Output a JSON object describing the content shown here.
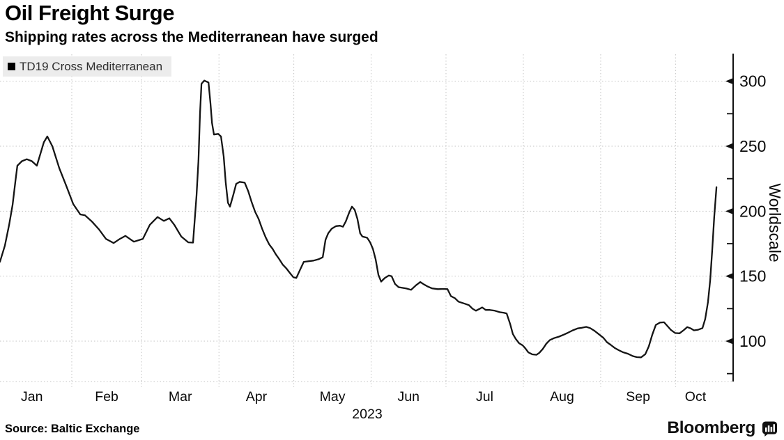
{
  "header": {
    "title": "Oil Freight Surge",
    "subtitle": "Shipping rates across the Mediterranean have surged"
  },
  "legend": {
    "series_label": "TD19 Cross Mediterranean",
    "swatch_color": "#000000",
    "background_color": "#ececec",
    "position": "top-left"
  },
  "footer": {
    "source": "Source: Baltic Exchange",
    "brand": "Bloomberg"
  },
  "chart_data": {
    "type": "line",
    "title": "Oil Freight Surge",
    "subtitle": "Shipping rates across the Mediterranean have surged",
    "series_name": "TD19 Cross Mediterranean",
    "xlabel": "",
    "ylabel": "Worldscale",
    "year_label": "2023",
    "x_tick_labels": [
      "Jan",
      "Feb",
      "Mar",
      "Apr",
      "May",
      "Jun",
      "Jul",
      "Aug",
      "Sep",
      "Oct"
    ],
    "x_tick_label_days": [
      15,
      45,
      74.5,
      105,
      135.5,
      166,
      196.5,
      227.5,
      258,
      281
    ],
    "month_start_days": [
      31,
      59,
      90,
      120,
      151,
      181,
      212,
      243,
      273
    ],
    "y_ticks": [
      100,
      150,
      200,
      250,
      300
    ],
    "y_minor_ticks": [
      75,
      125,
      175,
      225,
      275
    ],
    "ylim": [
      68,
      320
    ],
    "xlim_days": [
      0,
      296
    ],
    "grid": "dotted",
    "grid_color": "#c3c3c3",
    "axis_side": "right",
    "line_color": "#141414",
    "text_color": "#0a0a0a",
    "points": [
      [
        2.2,
        161
      ],
      [
        4.2,
        173.5
      ],
      [
        5.9,
        189.5
      ],
      [
        7.3,
        205
      ],
      [
        8.4,
        223
      ],
      [
        9.2,
        235
      ],
      [
        11,
        238.5
      ],
      [
        13,
        240
      ],
      [
        15,
        238.5
      ],
      [
        17,
        235
      ],
      [
        18.4,
        244
      ],
      [
        19.8,
        253
      ],
      [
        21.2,
        257.5
      ],
      [
        23.2,
        250
      ],
      [
        26,
        233
      ],
      [
        28.8,
        219.5
      ],
      [
        31.6,
        205.5
      ],
      [
        34.4,
        197.5
      ],
      [
        36.3,
        196.8
      ],
      [
        39.1,
        192
      ],
      [
        41.9,
        186
      ],
      [
        44.7,
        178.7
      ],
      [
        47.8,
        175.5
      ],
      [
        50.3,
        178.7
      ],
      [
        52.5,
        181
      ],
      [
        55.9,
        176.5
      ],
      [
        59.5,
        178.7
      ],
      [
        62.3,
        189.5
      ],
      [
        65.4,
        195.5
      ],
      [
        67.9,
        192.5
      ],
      [
        70.1,
        194.5
      ],
      [
        72.1,
        189.5
      ],
      [
        74.9,
        180.5
      ],
      [
        77.7,
        176
      ],
      [
        79.6,
        175.8
      ],
      [
        81,
        212
      ],
      [
        81.8,
        239
      ],
      [
        82.4,
        275
      ],
      [
        83,
        298
      ],
      [
        84.1,
        300.5
      ],
      [
        85.8,
        299
      ],
      [
        86.6,
        283
      ],
      [
        87.2,
        268
      ],
      [
        88,
        259
      ],
      [
        89.7,
        259.5
      ],
      [
        90.8,
        257.5
      ],
      [
        91.9,
        242
      ],
      [
        92.7,
        222
      ],
      [
        93.6,
        206.5
      ],
      [
        94.4,
        203.5
      ],
      [
        95.8,
        213
      ],
      [
        96.9,
        221
      ],
      [
        98.3,
        222.5
      ],
      [
        100.3,
        222
      ],
      [
        101.7,
        215.5
      ],
      [
        103.1,
        207
      ],
      [
        104.5,
        199.5
      ],
      [
        105.9,
        194
      ],
      [
        107.3,
        186.5
      ],
      [
        108.7,
        180
      ],
      [
        110.1,
        174.5
      ],
      [
        111.5,
        171
      ],
      [
        112.8,
        166.8
      ],
      [
        114.2,
        163
      ],
      [
        115.6,
        158.8
      ],
      [
        117,
        156
      ],
      [
        118.4,
        152.5
      ],
      [
        119.8,
        149.2
      ],
      [
        121,
        148.6
      ],
      [
        122.3,
        154
      ],
      [
        124,
        161
      ],
      [
        127.9,
        162
      ],
      [
        129.9,
        163
      ],
      [
        131.6,
        164.5
      ],
      [
        132.7,
        178
      ],
      [
        133.8,
        183
      ],
      [
        135.2,
        186.5
      ],
      [
        136.9,
        188.5
      ],
      [
        138.5,
        188.8
      ],
      [
        139.7,
        188
      ],
      [
        140.8,
        192
      ],
      [
        142.2,
        199
      ],
      [
        143.3,
        203.5
      ],
      [
        144.4,
        201
      ],
      [
        145.5,
        194
      ],
      [
        146.6,
        183
      ],
      [
        147.5,
        180.5
      ],
      [
        148.6,
        180
      ],
      [
        149.4,
        179.5
      ],
      [
        150.6,
        176
      ],
      [
        151.7,
        171
      ],
      [
        152.8,
        163
      ],
      [
        153.9,
        151
      ],
      [
        155,
        145.8
      ],
      [
        156.4,
        148.5
      ],
      [
        158.1,
        150.5
      ],
      [
        159.2,
        150
      ],
      [
        160.6,
        144
      ],
      [
        162,
        141.5
      ],
      [
        163.7,
        141
      ],
      [
        165.1,
        140.5
      ],
      [
        167,
        139.5
      ],
      [
        169,
        143
      ],
      [
        170.7,
        145.5
      ],
      [
        172.3,
        143.5
      ],
      [
        173.7,
        142
      ],
      [
        175.4,
        140.6
      ],
      [
        177.7,
        140
      ],
      [
        179.9,
        140.2
      ],
      [
        181.6,
        140
      ],
      [
        183,
        134.6
      ],
      [
        184.6,
        133
      ],
      [
        186,
        130.4
      ],
      [
        188.5,
        128.8
      ],
      [
        190.2,
        127.7
      ],
      [
        191.6,
        125
      ],
      [
        193,
        123.4
      ],
      [
        194.4,
        124.8
      ],
      [
        195.5,
        126
      ],
      [
        196.9,
        124
      ],
      [
        198.6,
        124
      ],
      [
        200.6,
        123.4
      ],
      [
        202.5,
        122.3
      ],
      [
        204.2,
        121.8
      ],
      [
        205.3,
        121.3
      ],
      [
        206.7,
        113.3
      ],
      [
        207.8,
        105.5
      ],
      [
        208.9,
        101.8
      ],
      [
        210.3,
        98.4
      ],
      [
        211.7,
        96.8
      ],
      [
        212.8,
        94.5
      ],
      [
        214,
        91.4
      ],
      [
        215.6,
        89.8
      ],
      [
        217.3,
        89.5
      ],
      [
        218.4,
        91
      ],
      [
        219.8,
        94
      ],
      [
        221.2,
        98
      ],
      [
        222.6,
        100.8
      ],
      [
        224.3,
        102.3
      ],
      [
        226.3,
        103.5
      ],
      [
        228.2,
        105
      ],
      [
        229.9,
        106.5
      ],
      [
        231.8,
        108.3
      ],
      [
        233.8,
        109.8
      ],
      [
        235.5,
        110.3
      ],
      [
        237.2,
        111
      ],
      [
        238.8,
        110
      ],
      [
        240.5,
        108
      ],
      [
        242.5,
        105
      ],
      [
        244.1,
        102.5
      ],
      [
        245.5,
        99.2
      ],
      [
        246.9,
        97.3
      ],
      [
        248.6,
        94.8
      ],
      [
        250.3,
        93
      ],
      [
        251.9,
        91.5
      ],
      [
        253.9,
        90.3
      ],
      [
        255.9,
        88.5
      ],
      [
        257.5,
        87.7
      ],
      [
        259.2,
        87.5
      ],
      [
        260.9,
        90
      ],
      [
        262.3,
        96
      ],
      [
        263.7,
        105
      ],
      [
        265.1,
        112.5
      ],
      [
        266.8,
        114.3
      ],
      [
        268.4,
        114.5
      ],
      [
        269.8,
        111.5
      ],
      [
        271.2,
        108.5
      ],
      [
        272.9,
        106.2
      ],
      [
        274.6,
        106
      ],
      [
        276.3,
        108.5
      ],
      [
        277.7,
        110.8
      ],
      [
        279.1,
        109.8
      ],
      [
        280.4,
        108.3
      ],
      [
        282.1,
        108.8
      ],
      [
        283.8,
        110
      ],
      [
        284.9,
        117
      ],
      [
        286,
        130
      ],
      [
        286.9,
        147
      ],
      [
        287.7,
        170
      ],
      [
        288.5,
        195
      ],
      [
        289.4,
        218.5
      ]
    ]
  }
}
